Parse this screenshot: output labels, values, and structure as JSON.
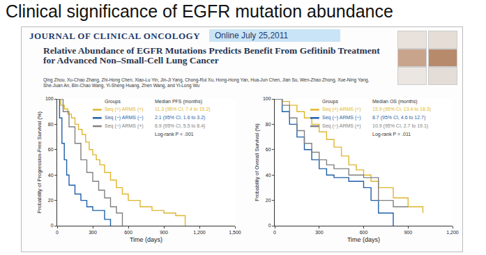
{
  "slide": {
    "title": "Clinical significance of EGFR mutation abundance"
  },
  "paper": {
    "journal": "JOURNAL OF CLINICAL ONCOLOGY",
    "online": "Online July 25,2011",
    "title": "Relative Abundance of EGFR Mutations Predicts Benefit From Gefitinib Treatment for Advanced Non–Small-Cell Lung Cancer",
    "authors": "Qing Zhou, Xu-Chao Zhang, Zhi-Hong Chen, Xiao-Lu Yin, Jin-Ji Yang, Chong-Rui Xu, Hong-Hong Yan, Hua-Jun Chen, Jian Su, Wen-Zhao Zhong, Xue-Ning Yang, She-Juan An, Bin-Chao Wang, Yi-Sheng Huang, Zhen Wang, and Yi-Long Wu"
  },
  "chart_data": [
    {
      "type": "step",
      "x_label": "Time (days)",
      "y_label": "Probability of Progression-Free Survival (%)",
      "xlim": [
        0,
        1500
      ],
      "xticks": [
        0,
        300,
        600,
        900,
        {
          "value": 1200,
          "label": "1,200"
        },
        {
          "value": 1500,
          "label": "1,500"
        }
      ],
      "ylim": [
        0,
        100
      ],
      "yticks": [
        0,
        20,
        40,
        60,
        80,
        100
      ],
      "grid": false,
      "legend": "upper right",
      "legend_title": "Groups",
      "median_header": "Median PFS (months)",
      "annotation": "Log-rank P < .001",
      "series": [
        {
          "name": "Seq (+) ARMS (+)",
          "color": "#e0b52c",
          "median_label": "11.3 (95% CI, 7.4 to 15.2)",
          "x": [
            0,
            30,
            60,
            90,
            120,
            150,
            180,
            210,
            240,
            270,
            300,
            330,
            360,
            400,
            450,
            500,
            550,
            600,
            700,
            800,
            900,
            1000,
            1080
          ],
          "values": [
            100,
            95,
            92,
            88,
            85,
            80,
            76,
            72,
            66,
            60,
            56,
            52,
            48,
            42,
            36,
            30,
            25,
            20,
            15,
            12,
            10,
            8,
            0
          ]
        },
        {
          "name": "Seq (−) ARMS (−)",
          "color": "#1f5fa8",
          "median_label": "2.1 (95% CI, 1.6 to 3.2)",
          "x": [
            0,
            20,
            40,
            60,
            80,
            100,
            150,
            200,
            250,
            300,
            400,
            450
          ],
          "values": [
            100,
            85,
            65,
            52,
            40,
            32,
            25,
            20,
            15,
            12,
            5,
            0
          ]
        },
        {
          "name": "Seq (−) ARMS (+)",
          "color": "#808080",
          "median_label": "6.9 (95% CI, 5.5 to 8.4)",
          "x": [
            0,
            50,
            100,
            150,
            200,
            250,
            300,
            350,
            400,
            450,
            500,
            550
          ],
          "values": [
            100,
            90,
            78,
            65,
            52,
            42,
            35,
            28,
            22,
            15,
            10,
            0
          ]
        }
      ]
    },
    {
      "type": "step",
      "x_label": "Time (days)",
      "y_label": "Probability of Overall Survival (%)",
      "xlim": [
        0,
        1200
      ],
      "xticks": [
        0,
        300,
        600,
        900,
        {
          "value": 1200,
          "label": "1,200"
        }
      ],
      "ylim": [
        0,
        100
      ],
      "yticks": [
        0,
        20,
        40,
        60,
        80,
        100
      ],
      "grid": false,
      "legend": "upper right",
      "legend_title": "Groups",
      "median_header": "Median OS (months)",
      "annotation": "Log-rank P = .011",
      "series": [
        {
          "name": "Seq (+) ARMS (+)",
          "color": "#e0b52c",
          "median_label": "15.9 (95% CI, 13.4 to 18.3)",
          "x": [
            0,
            50,
            100,
            150,
            200,
            250,
            300,
            350,
            400,
            450,
            500,
            550,
            600,
            650,
            700,
            800,
            900,
            1000
          ],
          "values": [
            100,
            98,
            95,
            90,
            85,
            80,
            74,
            68,
            62,
            55,
            48,
            44,
            40,
            35,
            30,
            22,
            15,
            10
          ]
        },
        {
          "name": "Seq (−) ARMS (−)",
          "color": "#1f5fa8",
          "median_label": "8.7 (95% CI, 4.6 to 12.7)",
          "x": [
            0,
            50,
            100,
            150,
            200,
            250,
            300,
            350,
            400,
            500,
            600,
            650,
            700,
            800
          ],
          "values": [
            100,
            90,
            80,
            70,
            60,
            52,
            45,
            40,
            38,
            35,
            30,
            20,
            10,
            0
          ]
        },
        {
          "name": "Seq (−) ARMS (+)",
          "color": "#808080",
          "median_label": "10.9 (95% CI, 2.7 to 19.1)",
          "x": [
            0,
            50,
            100,
            150,
            200,
            250,
            300,
            350,
            400,
            500,
            600,
            700,
            800,
            900
          ],
          "values": [
            100,
            95,
            85,
            75,
            65,
            58,
            52,
            48,
            45,
            40,
            38,
            20,
            15,
            15
          ]
        }
      ]
    }
  ]
}
